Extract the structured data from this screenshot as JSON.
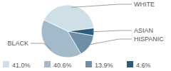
{
  "chart_data": {
    "type": "pie",
    "categories": [
      "WHITE",
      "BLACK",
      "HISPANIC",
      "ASIAN"
    ],
    "values": [
      41.0,
      40.6,
      13.9,
      4.6
    ],
    "value_labels": [
      "41.0%",
      "40.6%",
      "13.9%",
      "4.6%"
    ],
    "colors": [
      "#cfdfe8",
      "#a3bacb",
      "#6e8fa7",
      "#2d5b7c"
    ],
    "legend": "bottom"
  }
}
